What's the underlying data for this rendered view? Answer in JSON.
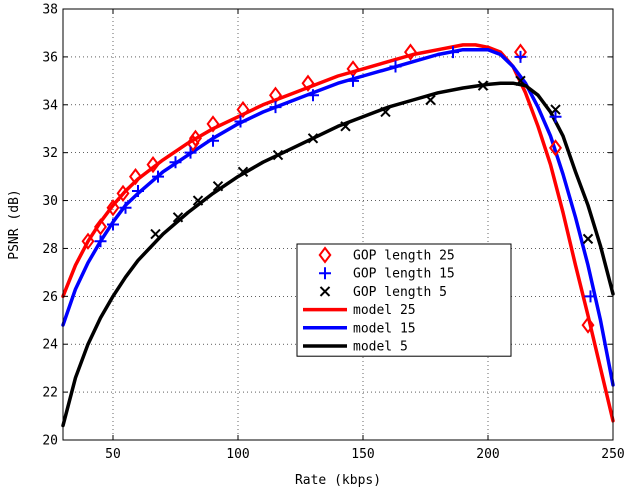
{
  "chart_data": {
    "type": "line",
    "title": "",
    "xlabel": "Rate (kbps)",
    "ylabel": "PSNR (dB)",
    "xlim": [
      30,
      250
    ],
    "ylim": [
      20,
      38
    ],
    "xticks": [
      50,
      100,
      150,
      200,
      250
    ],
    "yticks": [
      20,
      22,
      24,
      26,
      28,
      30,
      32,
      34,
      36,
      38
    ],
    "grid": true,
    "legend_position": "center-right",
    "series": [
      {
        "name": "GOP length 25",
        "kind": "markers",
        "marker": "diamond",
        "color": "#ff0000",
        "x": [
          40,
          45,
          50,
          54,
          59,
          66,
          82,
          83,
          90,
          102,
          115,
          128,
          146,
          169,
          213,
          227,
          240
        ],
        "y": [
          28.3,
          28.9,
          29.7,
          30.3,
          31.0,
          31.5,
          32.4,
          32.6,
          33.2,
          33.8,
          34.4,
          34.9,
          35.5,
          36.2,
          36.2,
          32.2,
          24.8
        ]
      },
      {
        "name": "GOP length 15",
        "kind": "markers",
        "marker": "plus",
        "color": "#0000ff",
        "x": [
          45,
          50,
          55,
          60,
          68,
          75,
          81,
          90,
          101,
          115,
          130,
          146,
          163,
          186,
          213,
          227,
          241
        ],
        "y": [
          28.3,
          29.0,
          29.7,
          30.4,
          31.0,
          31.6,
          32.0,
          32.5,
          33.3,
          33.9,
          34.4,
          35.0,
          35.6,
          36.2,
          36.0,
          33.5,
          26.0
        ]
      },
      {
        "name": "GOP length 5",
        "kind": "markers",
        "marker": "x",
        "color": "#000000",
        "x": [
          67,
          76,
          84,
          92,
          102,
          116,
          130,
          143,
          159,
          177,
          198,
          213,
          227,
          240
        ],
        "y": [
          28.6,
          29.3,
          30.0,
          30.6,
          31.2,
          31.9,
          32.6,
          33.1,
          33.7,
          34.2,
          34.8,
          35.0,
          33.8,
          28.4
        ]
      },
      {
        "name": "model 25",
        "kind": "line",
        "color": "#ff0000",
        "x": [
          30,
          35,
          40,
          45,
          50,
          55,
          60,
          70,
          80,
          90,
          100,
          110,
          120,
          130,
          140,
          150,
          160,
          170,
          180,
          190,
          195,
          200,
          205,
          210,
          215,
          220,
          225,
          230,
          235,
          240,
          245,
          250
        ],
        "y": [
          26.0,
          27.3,
          28.3,
          29.1,
          29.8,
          30.4,
          30.9,
          31.7,
          32.4,
          33.0,
          33.5,
          34.0,
          34.4,
          34.8,
          35.2,
          35.5,
          35.8,
          36.1,
          36.3,
          36.5,
          36.5,
          36.4,
          36.2,
          35.6,
          34.5,
          33.1,
          31.5,
          29.5,
          27.3,
          25.2,
          23.0,
          20.8
        ]
      },
      {
        "name": "model 15",
        "kind": "line",
        "color": "#0000ff",
        "x": [
          30,
          35,
          40,
          45,
          50,
          55,
          60,
          70,
          80,
          90,
          100,
          110,
          120,
          130,
          140,
          150,
          160,
          170,
          180,
          190,
          200,
          205,
          210,
          215,
          220,
          225,
          230,
          235,
          240,
          245,
          250
        ],
        "y": [
          24.8,
          26.3,
          27.4,
          28.3,
          29.1,
          29.8,
          30.3,
          31.2,
          31.9,
          32.6,
          33.2,
          33.7,
          34.1,
          34.5,
          34.9,
          35.2,
          35.5,
          35.8,
          36.1,
          36.3,
          36.3,
          36.1,
          35.6,
          34.9,
          33.9,
          32.7,
          31.1,
          29.3,
          27.3,
          25.0,
          22.3
        ]
      },
      {
        "name": "model 5",
        "kind": "line",
        "color": "#000000",
        "x": [
          30,
          35,
          40,
          45,
          50,
          55,
          60,
          70,
          80,
          90,
          100,
          110,
          120,
          130,
          140,
          150,
          160,
          170,
          180,
          190,
          200,
          205,
          210,
          215,
          220,
          225,
          230,
          235,
          240,
          245,
          250
        ],
        "y": [
          20.6,
          22.6,
          24.0,
          25.1,
          26.0,
          26.8,
          27.5,
          28.6,
          29.5,
          30.3,
          31.0,
          31.6,
          32.1,
          32.6,
          33.1,
          33.5,
          33.9,
          34.2,
          34.5,
          34.7,
          34.85,
          34.9,
          34.9,
          34.8,
          34.4,
          33.7,
          32.7,
          31.2,
          29.8,
          28.1,
          26.1
        ]
      }
    ]
  }
}
